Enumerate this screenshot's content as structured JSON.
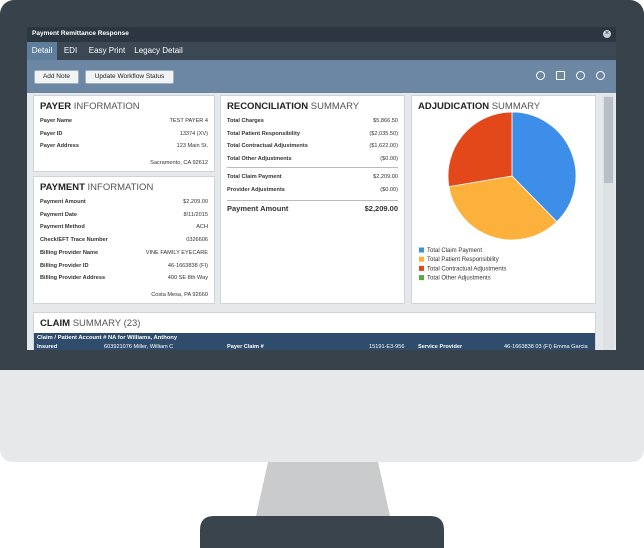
{
  "window": {
    "title": "Payment Remittance Response",
    "tabs": [
      "Detail",
      "EDI",
      "Easy Print",
      "Legacy Detail"
    ],
    "buttons": [
      "Add Note",
      "Update Workflow Status"
    ]
  },
  "payer": {
    "title": "PAYER",
    "subtitle": "INFORMATION",
    "rows": [
      {
        "label": "Payer Name",
        "lines": [
          "TEST PAYER 4"
        ]
      },
      {
        "label": "Payer ID",
        "lines": [
          "13374 (XV)"
        ]
      },
      {
        "label": "Payer Address",
        "lines": [
          "123 Main St.",
          "Sacramento, CA 92612"
        ]
      }
    ]
  },
  "payment": {
    "title": "PAYMENT",
    "subtitle": "INFORMATION",
    "rows": [
      {
        "label": "Payment Amount",
        "lines": [
          "$2,209.00"
        ]
      },
      {
        "label": "Payment Date",
        "lines": [
          "8/11/2015"
        ]
      },
      {
        "label": "Payment Method",
        "lines": [
          "ACH"
        ]
      },
      {
        "label": "Check/EFT Trace Number",
        "lines": [
          "0326606"
        ]
      },
      {
        "label": "Billing Provider Name",
        "lines": [
          "VINE FAMILY EYECARE"
        ]
      },
      {
        "label": "Billing Provider ID",
        "lines": [
          "46-1663838 (FI)"
        ]
      },
      {
        "label": "Billing Provider Address",
        "lines": [
          "400 SE 8th Way",
          "Costa Mesa, PA 92660"
        ]
      }
    ]
  },
  "reconciliation": {
    "title": "RECONCILIATION",
    "subtitle": "SUMMARY",
    "rows": [
      {
        "label": "Total Charges",
        "lines": [
          "$5,866.50"
        ]
      },
      {
        "label": "Total Patient Responsibility",
        "lines": [
          "($2,035.50)"
        ]
      },
      {
        "label": "Total Contractual Adjustments",
        "lines": [
          "($1,622.00)"
        ]
      },
      {
        "label": "Total Other Adjustments",
        "lines": [
          "($0.00)"
        ]
      }
    ],
    "totals": [
      {
        "label": "Total Claim Payment",
        "lines": [
          "$2,209.00"
        ]
      },
      {
        "label": "Provider Adjustments",
        "lines": [
          "($0.00)"
        ]
      }
    ],
    "payment_amount": {
      "label": "Payment Amount",
      "value": "$2,209.00"
    }
  },
  "chart_data": {
    "type": "pie",
    "title": "ADJUDICATION",
    "subtitle": "SUMMARY",
    "categories": [
      "Total Claim Payment",
      "Total Patient Responsibility",
      "Total Contractual Adjustments",
      "Total Other Adjustments"
    ],
    "values": [
      2209,
      2035.5,
      1622,
      0
    ],
    "colors": [
      "#3d8ee8",
      "#fbb13c",
      "#e2481a",
      "#55a845"
    ]
  },
  "claims": {
    "title": "CLAIM",
    "subtitle": "SUMMARY (23)",
    "claim": "Claim / Patient Account # NA for Williams, Anthony",
    "fields": [
      {
        "label": "Insured",
        "value": "603921076 Miller, William C"
      },
      {
        "label": "Payer Claim #",
        "value": "15191-E3-956"
      },
      {
        "label": "Service Provider",
        "value": "46-1663838 03 (FI) Emma Garcia"
      }
    ]
  }
}
